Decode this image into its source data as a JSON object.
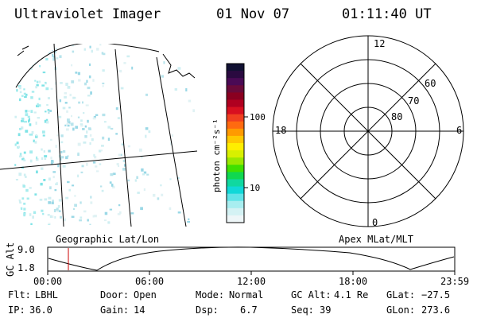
{
  "header": {
    "title": "Ultraviolet Imager",
    "date": "01 Nov 07",
    "time": "01:11:40 UT"
  },
  "colorbar": {
    "unit_label": "photon cm⁻²s⁻¹",
    "ticks": [
      "100",
      "10"
    ],
    "colors": [
      "#111133",
      "#2a0a40",
      "#4a0a55",
      "#6a0a3a",
      "#8a0020",
      "#b00020",
      "#d81020",
      "#f04020",
      "#ff6a10",
      "#ff9a00",
      "#ffc800",
      "#ffee00",
      "#d8f000",
      "#9ae800",
      "#40e000",
      "#10d850",
      "#10d8a0",
      "#10d8d8",
      "#60e4e8",
      "#a8eef0",
      "#d4f2f4",
      "#eef6f8"
    ]
  },
  "left_panel": {
    "label": "Geographic Lat/Lon"
  },
  "polar_plot": {
    "label": "Apex MLat/MLT",
    "mlt_labels": [
      "12",
      "18",
      "6",
      "0"
    ],
    "lat_labels": [
      "60",
      "70",
      "80"
    ]
  },
  "altitude_plot": {
    "axis_label": "GC Alt",
    "y_ticks": [
      "9.0",
      "1.8"
    ],
    "x_ticks": [
      "00:00",
      "06:00",
      "12:00",
      "18:00",
      "23:59"
    ],
    "marker_time": "01:11",
    "marker_color": "#cc0000"
  },
  "status": {
    "flt_label": "Flt:",
    "flt_value": "LBHL",
    "ip_label": "IP:",
    "ip_value": "36.0",
    "door_label": "Door:",
    "door_value": "Open",
    "gain_label": "Gain:",
    "gain_value": "14",
    "mode_label": "Mode:",
    "mode_value": "Normal",
    "dsp_label": "Dsp:",
    "dsp_value": "6.7",
    "gcalt_label": "GC Alt:",
    "gcalt_value": "4.1 Re",
    "seq_label": "Seq:",
    "seq_value": "39",
    "glat_label": "GLat:",
    "glat_value": "−27.5",
    "glon_label": "GLon:",
    "glon_value": "273.6"
  }
}
